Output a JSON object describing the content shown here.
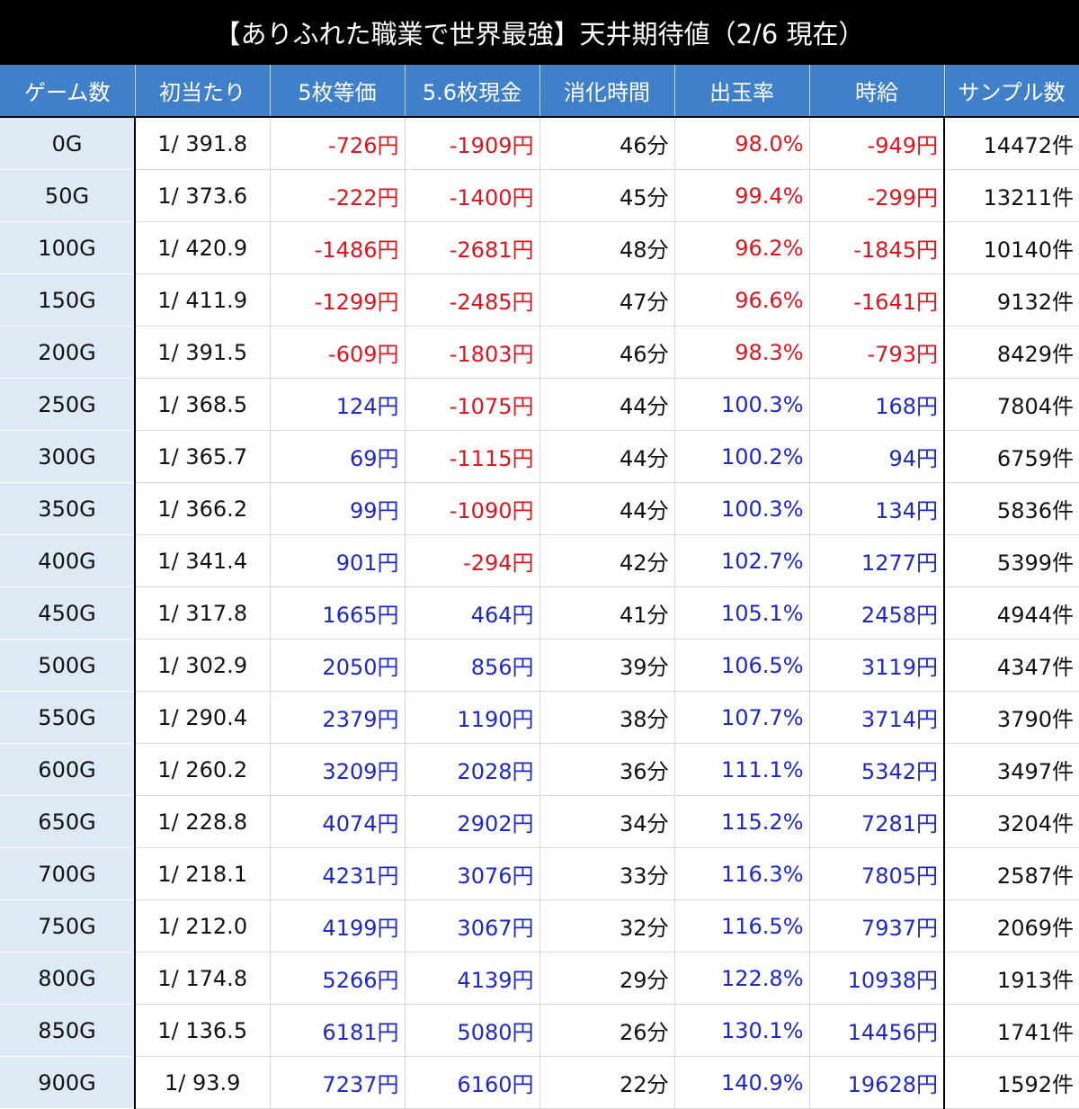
{
  "header": {
    "title": "【ありふれた職業で世界最強】天井期待値（2/6 現在）"
  },
  "colors": {
    "negative": "#e0141e",
    "positive": "#1e28c8"
  },
  "table": {
    "columns": [
      "ゲーム数",
      "初当たり",
      "5枚等価",
      "5.6枚現金",
      "消化時間",
      "出玉率",
      "時給",
      "サンプル数"
    ],
    "rows": [
      [
        "0G",
        "1/ 391.8",
        "-726円",
        "-1909円",
        "46分",
        "98.0%",
        "-949円",
        "14472件"
      ],
      [
        "50G",
        "1/ 373.6",
        "-222円",
        "-1400円",
        "45分",
        "99.4%",
        "-299円",
        "13211件"
      ],
      [
        "100G",
        "1/ 420.9",
        "-1486円",
        "-2681円",
        "48分",
        "96.2%",
        "-1845円",
        "10140件"
      ],
      [
        "150G",
        "1/ 411.9",
        "-1299円",
        "-2485円",
        "47分",
        "96.6%",
        "-1641円",
        "9132件"
      ],
      [
        "200G",
        "1/ 391.5",
        "-609円",
        "-1803円",
        "46分",
        "98.3%",
        "-793円",
        "8429件"
      ],
      [
        "250G",
        "1/ 368.5",
        "124円",
        "-1075円",
        "44分",
        "100.3%",
        "168円",
        "7804件"
      ],
      [
        "300G",
        "1/ 365.7",
        "69円",
        "-1115円",
        "44分",
        "100.2%",
        "94円",
        "6759件"
      ],
      [
        "350G",
        "1/ 366.2",
        "99円",
        "-1090円",
        "44分",
        "100.3%",
        "134円",
        "5836件"
      ],
      [
        "400G",
        "1/ 341.4",
        "901円",
        "-294円",
        "42分",
        "102.7%",
        "1277円",
        "5399件"
      ],
      [
        "450G",
        "1/ 317.8",
        "1665円",
        "464円",
        "41分",
        "105.1%",
        "2458円",
        "4944件"
      ],
      [
        "500G",
        "1/ 302.9",
        "2050円",
        "856円",
        "39分",
        "106.5%",
        "3119円",
        "4347件"
      ],
      [
        "550G",
        "1/ 290.4",
        "2379円",
        "1190円",
        "38分",
        "107.7%",
        "3714円",
        "3790件"
      ],
      [
        "600G",
        "1/ 260.2",
        "3209円",
        "2028円",
        "36分",
        "111.1%",
        "5342円",
        "3497件"
      ],
      [
        "650G",
        "1/ 228.8",
        "4074円",
        "2902円",
        "34分",
        "115.2%",
        "7281円",
        "3204件"
      ],
      [
        "700G",
        "1/ 218.1",
        "4231円",
        "3076円",
        "33分",
        "116.3%",
        "7805円",
        "2587件"
      ],
      [
        "750G",
        "1/ 212.0",
        "4199円",
        "3067円",
        "32分",
        "116.5%",
        "7937円",
        "2069件"
      ],
      [
        "800G",
        "1/ 174.8",
        "5266円",
        "4139円",
        "29分",
        "122.8%",
        "10938円",
        "1913件"
      ],
      [
        "850G",
        "1/ 136.5",
        "6181円",
        "5080円",
        "26分",
        "130.1%",
        "14456円",
        "1741件"
      ],
      [
        "900G",
        "1/ 93.9",
        "7237円",
        "6160円",
        "22分",
        "140.9%",
        "19628円",
        "1592件"
      ]
    ]
  }
}
